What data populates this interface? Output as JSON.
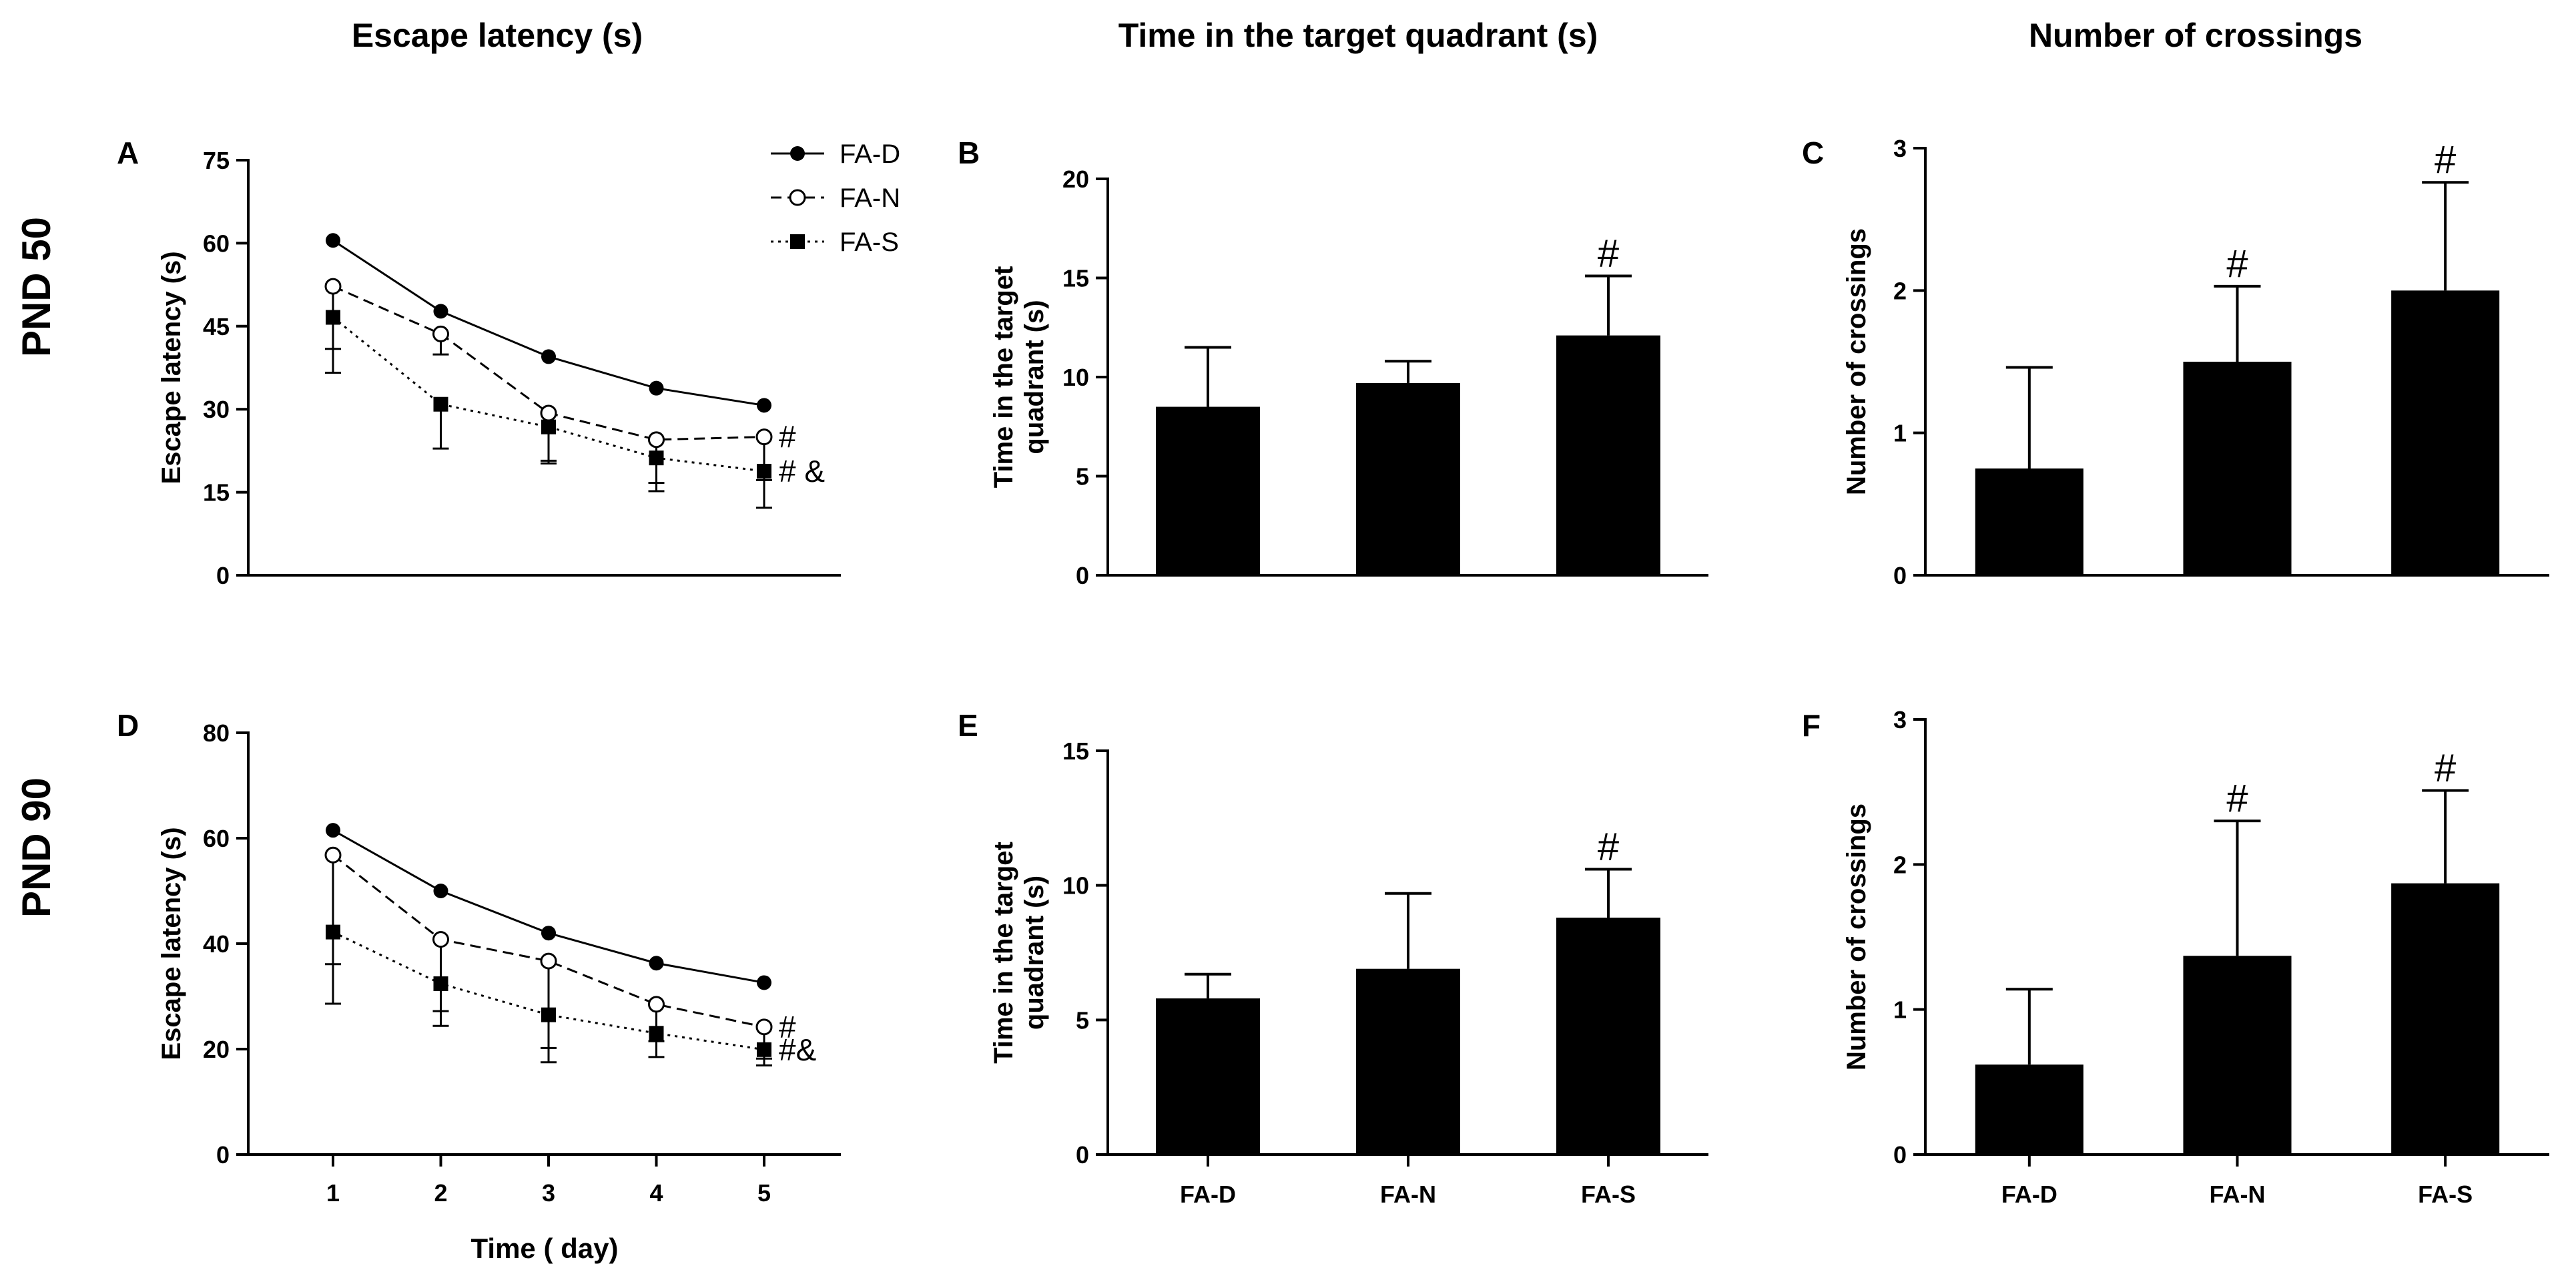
{
  "column_titles": [
    "Escape latency (s)",
    "Time in the target quadrant (s)",
    "Number of crossings"
  ],
  "row_titles": [
    "PND 50",
    "PND 90"
  ],
  "chart_data": [
    {
      "id": "A",
      "type": "line",
      "row": 0,
      "col": 0,
      "ylabel": "Escape latency (s)",
      "xlabel": "",
      "ylim": [
        0,
        75
      ],
      "yticks": [
        0,
        15,
        30,
        45,
        60,
        75
      ],
      "x": [
        1,
        2,
        3,
        4,
        5
      ],
      "show_xticks": false,
      "legend": true,
      "series": [
        {
          "name": "FA-D",
          "style": "solid",
          "marker": "filled-circle",
          "values": [
            60.5,
            47.7,
            39.5,
            33.8,
            30.7
          ],
          "err": [
            0,
            0,
            0,
            0,
            0
          ]
        },
        {
          "name": "FA-N",
          "style": "dashed",
          "marker": "open-circle",
          "values": [
            52.2,
            43.6,
            29.3,
            24.5,
            25.0
          ],
          "err": [
            11.3,
            3.7,
            8.6,
            7.8,
            7.8
          ]
        },
        {
          "name": "FA-S",
          "style": "dotted",
          "marker": "filled-square",
          "values": [
            46.6,
            30.9,
            26.8,
            21.2,
            18.8
          ],
          "err": [
            10.0,
            8.0,
            6.6,
            6.0,
            6.6
          ]
        }
      ],
      "annotations": [
        {
          "series": "FA-N",
          "text": "#"
        },
        {
          "series": "FA-S",
          "text": "# &"
        }
      ]
    },
    {
      "id": "B",
      "type": "bar",
      "row": 0,
      "col": 1,
      "ylabel": "Time in the target quadrant (s)",
      "ylabel_lines": [
        "Time in the target",
        "quadrant (s)"
      ],
      "ylim": [
        0,
        20
      ],
      "yticks": [
        0,
        5,
        10,
        15,
        20
      ],
      "categories": [
        "FA-D",
        "FA-N",
        "FA-S"
      ],
      "show_xticks": false,
      "values": [
        8.5,
        9.7,
        12.1
      ],
      "err": [
        3.0,
        1.1,
        3.0
      ],
      "sig": [
        "",
        "",
        "#"
      ]
    },
    {
      "id": "C",
      "type": "bar",
      "row": 0,
      "col": 2,
      "ylabel": "Number of crossings",
      "ylim": [
        0,
        3
      ],
      "yticks": [
        0,
        1,
        2,
        3
      ],
      "categories": [
        "FA-D",
        "FA-N",
        "FA-S"
      ],
      "show_xticks": false,
      "values": [
        0.75,
        1.5,
        2.0
      ],
      "err": [
        0.71,
        0.53,
        0.76
      ],
      "sig": [
        "",
        "#",
        "#"
      ]
    },
    {
      "id": "D",
      "type": "line",
      "row": 1,
      "col": 0,
      "ylabel": "Escape latency (s)",
      "xlabel": "Time ( day)",
      "ylim": [
        0,
        80
      ],
      "yticks": [
        0,
        20,
        40,
        60,
        80
      ],
      "x": [
        1,
        2,
        3,
        4,
        5
      ],
      "show_xticks": true,
      "legend": false,
      "series": [
        {
          "name": "FA-D",
          "style": "solid",
          "marker": "filled-circle",
          "values": [
            61.5,
            50.0,
            42.0,
            36.3,
            32.6
          ],
          "err": [
            0,
            0,
            0,
            0,
            0
          ]
        },
        {
          "name": "FA-N",
          "style": "dashed",
          "marker": "open-circle",
          "values": [
            56.8,
            40.8,
            36.7,
            28.5,
            24.2
          ],
          "err": [
            20.7,
            13.6,
            16.5,
            7.0,
            6.0
          ]
        },
        {
          "name": "FA-S",
          "style": "dotted",
          "marker": "filled-square",
          "values": [
            42.2,
            32.4,
            26.5,
            23.0,
            19.9
          ],
          "err": [
            13.6,
            8.0,
            9.0,
            4.5,
            3.0
          ]
        }
      ],
      "annotations": [
        {
          "series": "FA-N",
          "text": "#"
        },
        {
          "series": "FA-S",
          "text": "#&"
        }
      ]
    },
    {
      "id": "E",
      "type": "bar",
      "row": 1,
      "col": 1,
      "ylabel": "Time in the target quadrant (s)",
      "ylabel_lines": [
        "Time in the target",
        "quadrant (s)"
      ],
      "ylim": [
        0,
        15
      ],
      "yticks": [
        0,
        5,
        10,
        15
      ],
      "categories": [
        "FA-D",
        "FA-N",
        "FA-S"
      ],
      "show_xticks": true,
      "values": [
        5.8,
        6.9,
        8.8
      ],
      "err": [
        0.9,
        2.8,
        1.8
      ],
      "sig": [
        "",
        "",
        "#"
      ]
    },
    {
      "id": "F",
      "type": "bar",
      "row": 1,
      "col": 2,
      "ylabel": "Number of crossings",
      "ylim": [
        0,
        3
      ],
      "yticks": [
        0,
        1,
        2,
        3
      ],
      "categories": [
        "FA-D",
        "FA-N",
        "FA-S"
      ],
      "show_xticks": true,
      "values": [
        0.62,
        1.37,
        1.87
      ],
      "err": [
        0.52,
        0.93,
        0.64
      ],
      "sig": [
        "",
        "#",
        "#"
      ]
    }
  ]
}
